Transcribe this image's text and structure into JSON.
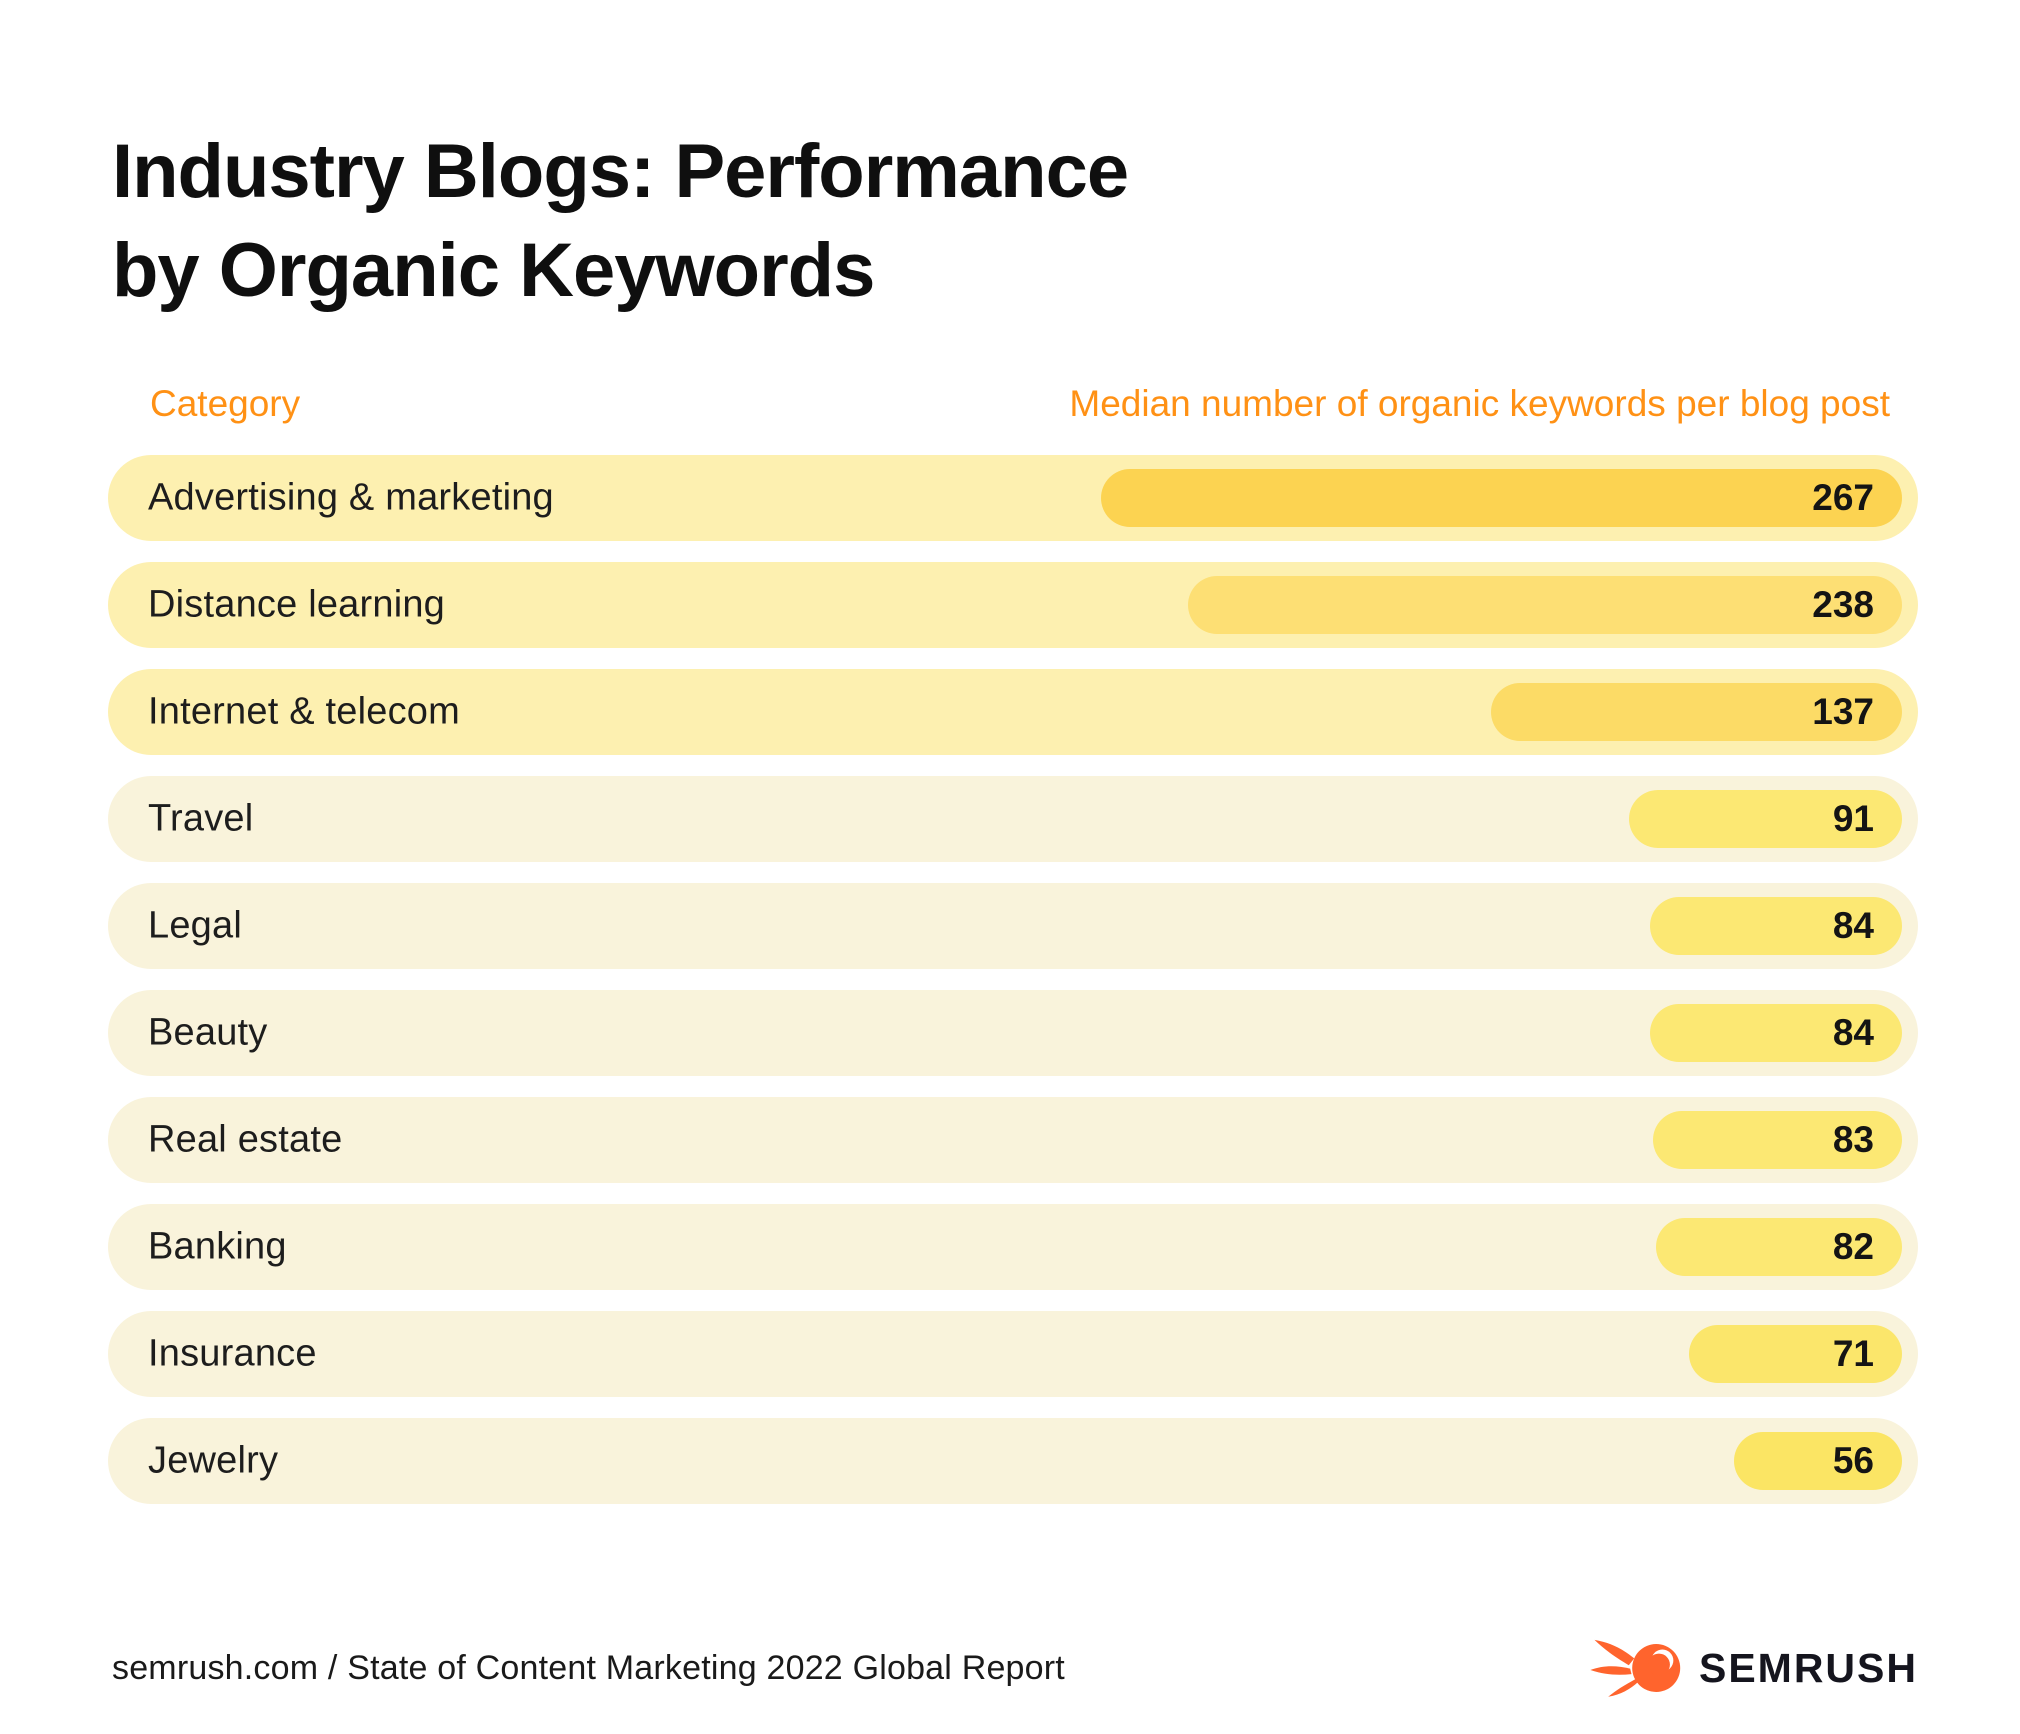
{
  "title": {
    "line1": "Industry Blogs: Performance",
    "line2": "by Organic Keywords"
  },
  "table": {
    "category_header": "Category",
    "value_header": "Median number of organic keywords per blog post",
    "header_color": "#FF9115",
    "rows": [
      {
        "label": "Advertising & marketing",
        "value": 267,
        "bar_color": "#FCD351",
        "row_bg": "#FDF0B0"
      },
      {
        "label": "Distance learning",
        "value": 238,
        "bar_color": "#FDDF74",
        "row_bg": "#FDF0B0"
      },
      {
        "label": "Internet & telecom",
        "value": 137,
        "bar_color": "#FCDB66",
        "row_bg": "#FDF0B0"
      },
      {
        "label": "Travel",
        "value": 91,
        "bar_color": "#FCE873",
        "row_bg": "#F9F3DB"
      },
      {
        "label": "Legal",
        "value": 84,
        "bar_color": "#FCE873",
        "row_bg": "#F9F3DB"
      },
      {
        "label": "Beauty",
        "value": 84,
        "bar_color": "#FCE873",
        "row_bg": "#F9F3DB"
      },
      {
        "label": "Real estate",
        "value": 83,
        "bar_color": "#FCE873",
        "row_bg": "#F9F3DB"
      },
      {
        "label": "Banking",
        "value": 82,
        "bar_color": "#FCE873",
        "row_bg": "#F9F3DB"
      },
      {
        "label": "Insurance",
        "value": 71,
        "bar_color": "#FBE66B",
        "row_bg": "#F9F3DB"
      },
      {
        "label": "Jewelry",
        "value": 56,
        "bar_color": "#FBE564",
        "row_bg": "#F9F3DB"
      }
    ]
  },
  "footer": {
    "source": "semrush.com / State of Content Marketing 2022 Global Report",
    "brand": "SEMRUSH",
    "brand_orange": "#FF642D"
  },
  "chart_data": {
    "type": "bar",
    "orientation": "horizontal",
    "title": "Industry Blogs: Performance by Organic Keywords",
    "categories": [
      "Advertising & marketing",
      "Distance learning",
      "Internet & telecom",
      "Travel",
      "Legal",
      "Beauty",
      "Real estate",
      "Banking",
      "Insurance",
      "Jewelry"
    ],
    "values": [
      267,
      238,
      137,
      91,
      84,
      84,
      83,
      82,
      71,
      56
    ],
    "xlabel": "Median number of organic keywords per blog post",
    "ylabel": "Category",
    "xlim": [
      0,
      267
    ],
    "grid": false,
    "legend": false,
    "value_labels": "inside-bar-right",
    "source": "semrush.com / State of Content Marketing 2022 Global Report"
  }
}
